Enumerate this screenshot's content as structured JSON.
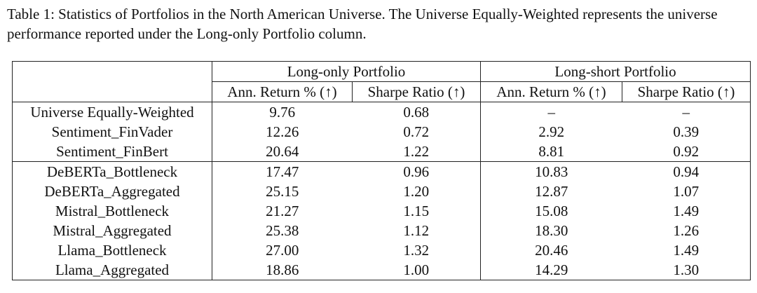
{
  "caption": "Table 1: Statistics of Portfolios in the North American Universe. The Universe Equally-Weighted represents the universe performance reported under the Long-only Portfolio column.",
  "table": {
    "groups": [
      "Long-only Portfolio",
      "Long-short Portfolio"
    ],
    "columns": [
      "Ann. Return % (↑)",
      "Sharpe Ratio (↑)",
      "Ann. Return % (↑)",
      "Sharpe Ratio (↑)"
    ],
    "rows": [
      [
        "Universe Equally-Weighted",
        "9.76",
        "0.68",
        "–",
        "–"
      ],
      [
        "Sentiment_FinVader",
        "12.26",
        "0.72",
        "2.92",
        "0.39"
      ],
      [
        "Sentiment_FinBert",
        "20.64",
        "1.22",
        "8.81",
        "0.92"
      ],
      [
        "DeBERTa_Bottleneck",
        "17.47",
        "0.96",
        "10.83",
        "0.94"
      ],
      [
        "DeBERTa_Aggregated",
        "25.15",
        "1.20",
        "12.87",
        "1.07"
      ],
      [
        "Mistral_Bottleneck",
        "21.27",
        "1.15",
        "15.08",
        "1.49"
      ],
      [
        "Mistral_Aggregated",
        "25.38",
        "1.12",
        "18.30",
        "1.26"
      ],
      [
        "Llama_Bottleneck",
        "27.00",
        "1.32",
        "20.46",
        "1.49"
      ],
      [
        "Llama_Aggregated",
        "18.86",
        "1.00",
        "14.29",
        "1.30"
      ]
    ]
  }
}
